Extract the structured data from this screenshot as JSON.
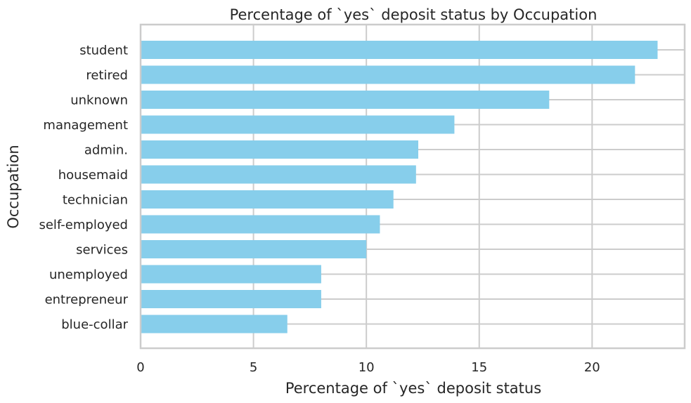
{
  "chart_data": {
    "type": "bar",
    "orientation": "horizontal",
    "title": "Percentage of `yes` deposit status by Occupation",
    "xlabel": "Percentage of `yes` deposit status",
    "ylabel": "Occupation",
    "categories": [
      "student",
      "retired",
      "unknown",
      "management",
      "admin.",
      "housemaid",
      "technician",
      "self-employed",
      "services",
      "unemployed",
      "entrepreneur",
      "blue-collar"
    ],
    "values": [
      22.9,
      21.9,
      18.1,
      13.9,
      12.3,
      12.2,
      11.2,
      10.6,
      10.0,
      8.0,
      8.0,
      6.5
    ],
    "xlim": [
      0,
      24.1
    ],
    "xticks": [
      0,
      5,
      10,
      15,
      20
    ],
    "bar_color": "#87ceeb",
    "grid": true
  }
}
